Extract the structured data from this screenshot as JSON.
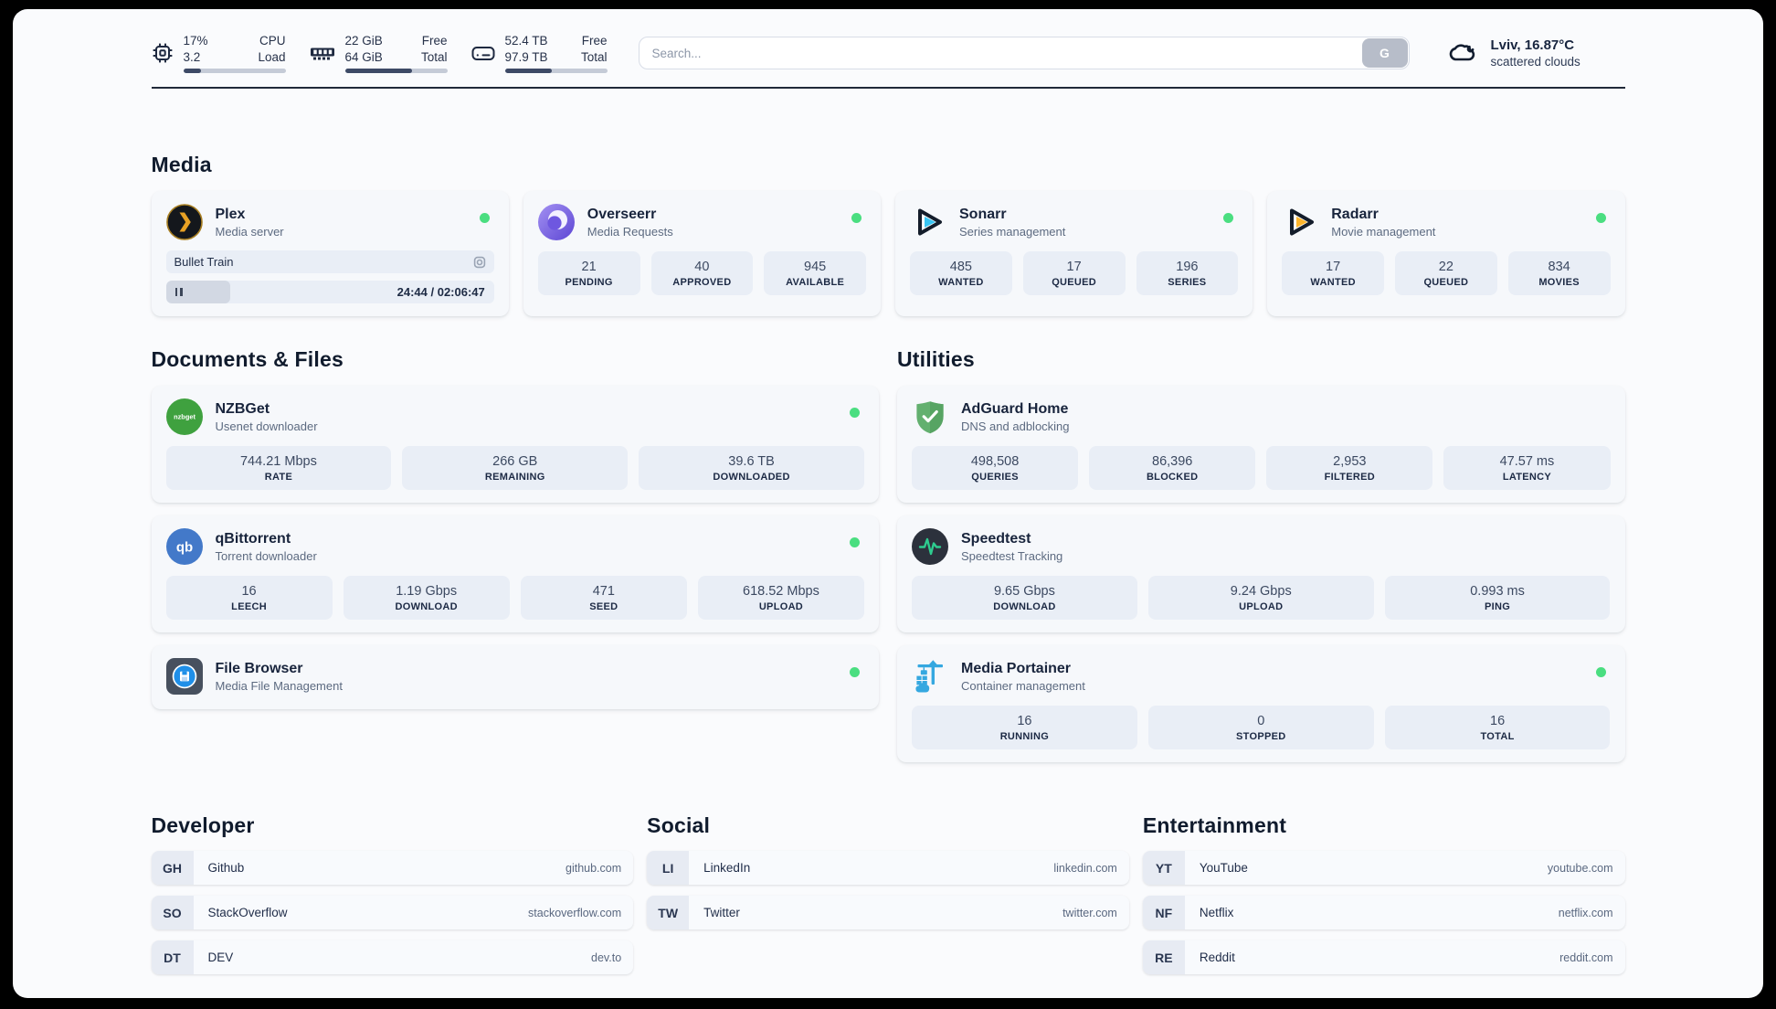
{
  "colors": {
    "status_online": "#4ade80",
    "progress_fill": "#3d4a66",
    "accent_text": "#18243c"
  },
  "topbar": {
    "resources": [
      {
        "icon": "cpu-icon",
        "value_top": "17%",
        "value_bottom": "3.2",
        "label_top": "CPU",
        "label_bottom": "Load",
        "percent": 17
      },
      {
        "icon": "memory-icon",
        "value_top": "22 GiB",
        "value_bottom": "64 GiB",
        "label_top": "Free",
        "label_bottom": "Total",
        "percent": 66
      },
      {
        "icon": "disk-icon",
        "value_top": "52.4 TB",
        "value_bottom": "97.9 TB",
        "label_top": "Free",
        "label_bottom": "Total",
        "percent": 46
      }
    ],
    "search": {
      "placeholder": "Search...",
      "engine_button": "G"
    },
    "weather": {
      "location_temp": "Lviv, 16.87°C",
      "condition": "scattered clouds"
    }
  },
  "sections": {
    "media": {
      "title": "Media",
      "plex": {
        "title": "Plex",
        "subtitle": "Media server",
        "online": true,
        "now_playing": "Bullet Train",
        "time_display": "24:44 / 02:06:47",
        "progress_percent": 19.5
      },
      "overseerr": {
        "title": "Overseerr",
        "subtitle": "Media Requests",
        "online": true,
        "stats": [
          {
            "value": "21",
            "label": "PENDING"
          },
          {
            "value": "40",
            "label": "APPROVED"
          },
          {
            "value": "945",
            "label": "AVAILABLE"
          }
        ]
      },
      "sonarr": {
        "title": "Sonarr",
        "subtitle": "Series management",
        "online": true,
        "stats": [
          {
            "value": "485",
            "label": "WANTED"
          },
          {
            "value": "17",
            "label": "QUEUED"
          },
          {
            "value": "196",
            "label": "SERIES"
          }
        ]
      },
      "radarr": {
        "title": "Radarr",
        "subtitle": "Movie management",
        "online": true,
        "stats": [
          {
            "value": "17",
            "label": "WANTED"
          },
          {
            "value": "22",
            "label": "QUEUED"
          },
          {
            "value": "834",
            "label": "MOVIES"
          }
        ]
      }
    },
    "documents": {
      "title": "Documents & Files",
      "nzbget": {
        "title": "NZBGet",
        "subtitle": "Usenet downloader",
        "online": true,
        "stats": [
          {
            "value": "744.21 Mbps",
            "label": "RATE"
          },
          {
            "value": "266 GB",
            "label": "REMAINING"
          },
          {
            "value": "39.6 TB",
            "label": "DOWNLOADED"
          }
        ]
      },
      "qbittorrent": {
        "title": "qBittorrent",
        "subtitle": "Torrent downloader",
        "online": true,
        "stats": [
          {
            "value": "16",
            "label": "LEECH"
          },
          {
            "value": "1.19 Gbps",
            "label": "DOWNLOAD"
          },
          {
            "value": "471",
            "label": "SEED"
          },
          {
            "value": "618.52 Mbps",
            "label": "UPLOAD"
          }
        ]
      },
      "filebrowser": {
        "title": "File Browser",
        "subtitle": "Media File Management",
        "online": true
      }
    },
    "utilities": {
      "title": "Utilities",
      "adguard": {
        "title": "AdGuard Home",
        "subtitle": "DNS and adblocking",
        "online": false,
        "stats": [
          {
            "value": "498,508",
            "label": "QUERIES"
          },
          {
            "value": "86,396",
            "label": "BLOCKED"
          },
          {
            "value": "2,953",
            "label": "FILTERED"
          },
          {
            "value": "47.57 ms",
            "label": "LATENCY"
          }
        ]
      },
      "speedtest": {
        "title": "Speedtest",
        "subtitle": "Speedtest Tracking",
        "online": false,
        "stats": [
          {
            "value": "9.65 Gbps",
            "label": "DOWNLOAD"
          },
          {
            "value": "9.24 Gbps",
            "label": "UPLOAD"
          },
          {
            "value": "0.993 ms",
            "label": "PING"
          }
        ]
      },
      "portainer": {
        "title": "Media Portainer",
        "subtitle": "Container management",
        "online": true,
        "stats": [
          {
            "value": "16",
            "label": "RUNNING"
          },
          {
            "value": "0",
            "label": "STOPPED"
          },
          {
            "value": "16",
            "label": "TOTAL"
          }
        ]
      }
    }
  },
  "bookmarks": {
    "developer": {
      "title": "Developer",
      "items": [
        {
          "abbr": "GH",
          "name": "Github",
          "url": "github.com"
        },
        {
          "abbr": "SO",
          "name": "StackOverflow",
          "url": "stackoverflow.com"
        },
        {
          "abbr": "DT",
          "name": "DEV",
          "url": "dev.to"
        }
      ]
    },
    "social": {
      "title": "Social",
      "items": [
        {
          "abbr": "LI",
          "name": "LinkedIn",
          "url": "linkedin.com"
        },
        {
          "abbr": "TW",
          "name": "Twitter",
          "url": "twitter.com"
        }
      ]
    },
    "entertainment": {
      "title": "Entertainment",
      "items": [
        {
          "abbr": "YT",
          "name": "YouTube",
          "url": "youtube.com"
        },
        {
          "abbr": "NF",
          "name": "Netflix",
          "url": "netflix.com"
        },
        {
          "abbr": "RE",
          "name": "Reddit",
          "url": "reddit.com"
        }
      ]
    }
  }
}
